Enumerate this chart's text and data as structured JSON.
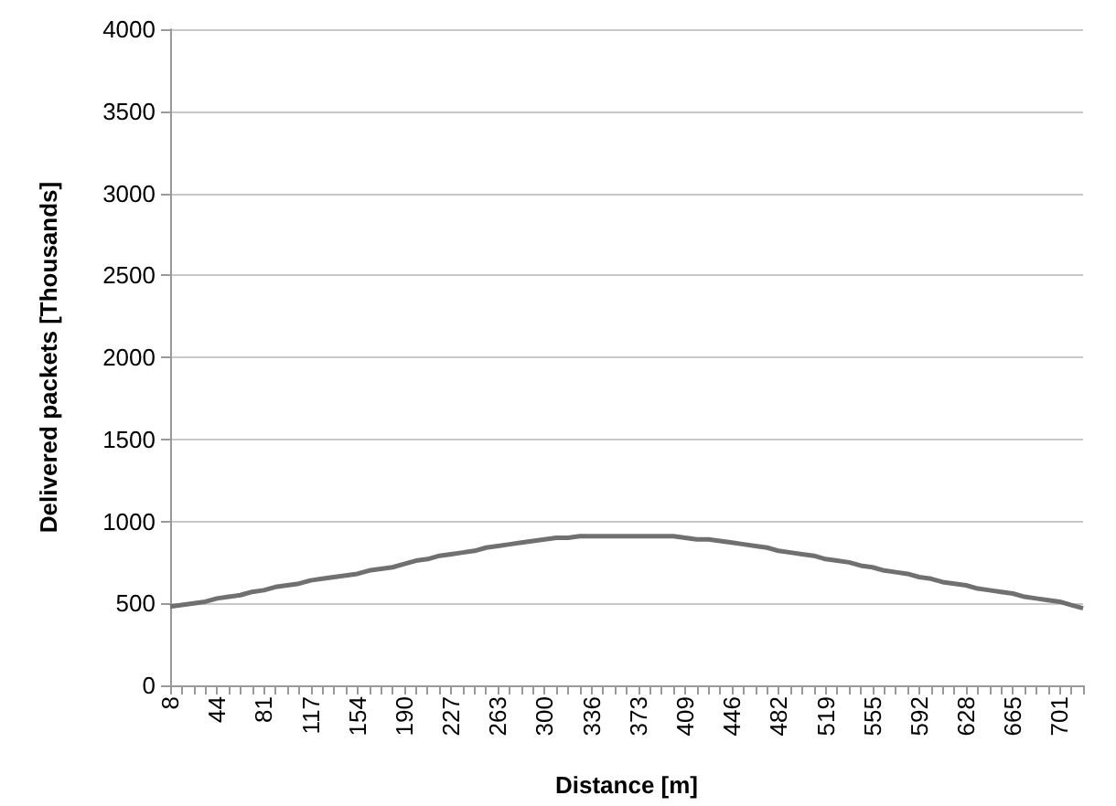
{
  "chart_data": {
    "type": "line",
    "xlabel": "Distance [m]",
    "ylabel": "Delivered packets [Thousands]",
    "categories": [
      "8",
      null,
      null,
      null,
      "44",
      null,
      null,
      null,
      "81",
      null,
      null,
      null,
      "117",
      null,
      null,
      null,
      "154",
      null,
      null,
      null,
      "190",
      null,
      null,
      null,
      "227",
      null,
      null,
      null,
      "263",
      null,
      null,
      null,
      "300",
      null,
      null,
      null,
      "336",
      null,
      null,
      null,
      "373",
      null,
      null,
      null,
      "409",
      null,
      null,
      null,
      "446",
      null,
      null,
      null,
      "482",
      null,
      null,
      null,
      "519",
      null,
      null,
      null,
      "555",
      null,
      null,
      null,
      "592",
      null,
      null,
      null,
      "628",
      null,
      null,
      null,
      "665",
      null,
      null,
      null,
      "701",
      null,
      null
    ],
    "series": [
      {
        "color": "#707070",
        "values": [
          480,
          490,
          500,
          510,
          530,
          540,
          550,
          570,
          580,
          600,
          610,
          620,
          640,
          650,
          660,
          670,
          680,
          700,
          710,
          720,
          740,
          760,
          770,
          790,
          800,
          810,
          820,
          840,
          850,
          860,
          870,
          880,
          890,
          900,
          900,
          910,
          910,
          910,
          910,
          910,
          910,
          910,
          910,
          910,
          900,
          890,
          890,
          880,
          870,
          860,
          850,
          840,
          820,
          810,
          800,
          790,
          770,
          760,
          750,
          730,
          720,
          700,
          690,
          680,
          660,
          650,
          630,
          620,
          610,
          590,
          580,
          570,
          560,
          540,
          530,
          520,
          510,
          490,
          470
        ]
      }
    ],
    "ylim": [
      0,
      4000
    ],
    "yticks": [
      0,
      500,
      1000,
      1500,
      2000,
      2500,
      3000,
      3500,
      4000
    ],
    "grid": "y",
    "marker": "none",
    "line_style": "solid"
  }
}
